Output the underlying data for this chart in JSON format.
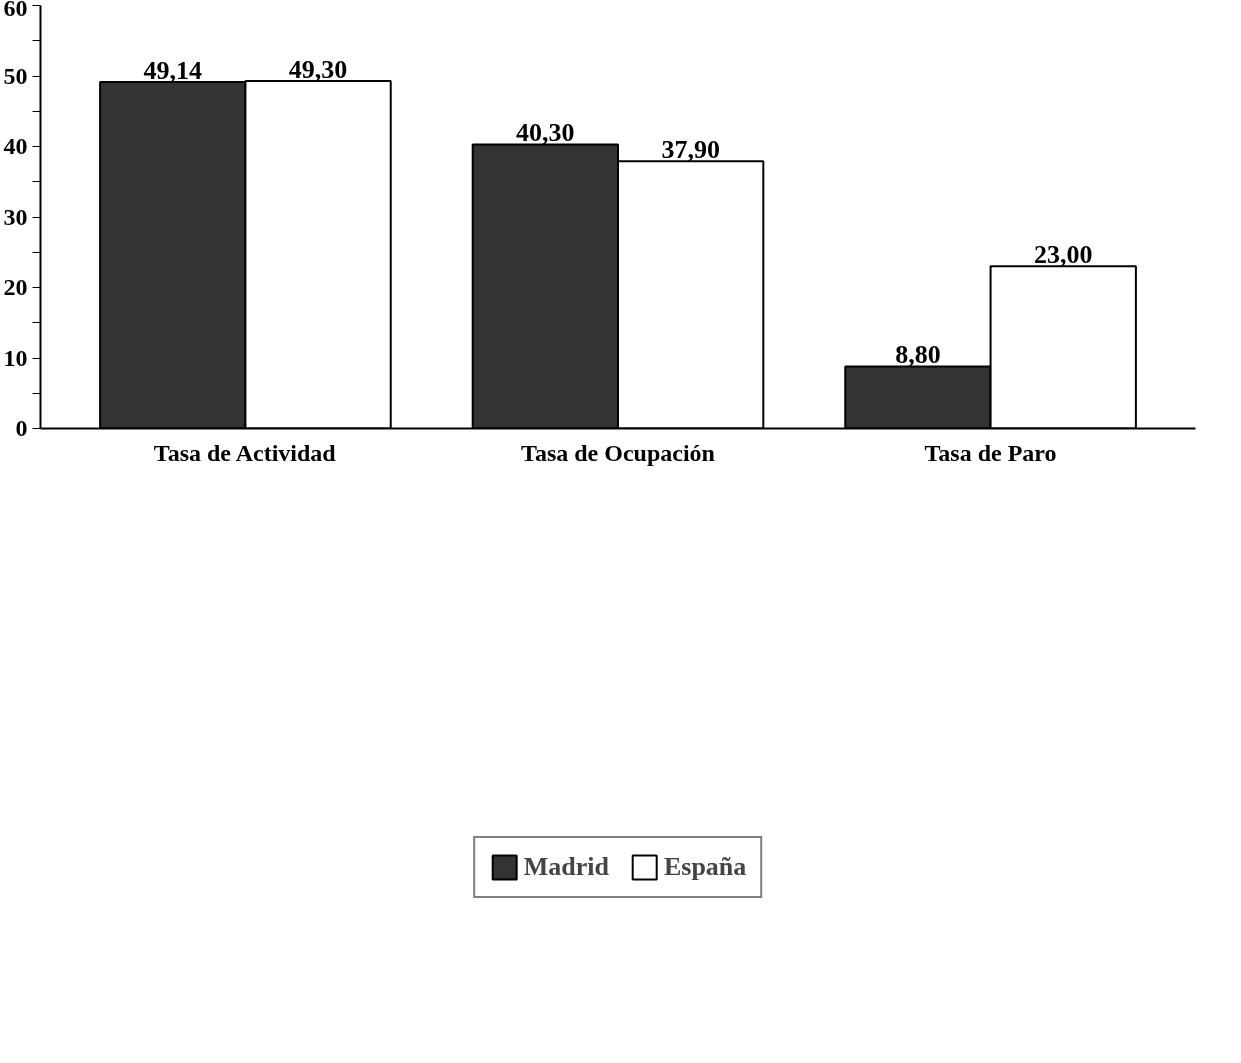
{
  "chart_data": {
    "type": "bar",
    "categories": [
      "Tasa de Actividad",
      "Tasa de Ocupación",
      "Tasa de Paro"
    ],
    "series": [
      {
        "name": "Madrid",
        "color": "#333333",
        "values": [
          49.14,
          40.3,
          8.8
        ],
        "value_labels": [
          "49,14",
          "40,30",
          "8,80"
        ]
      },
      {
        "name": "España",
        "color": "#ffffff",
        "values": [
          49.3,
          37.9,
          23.0
        ],
        "value_labels": [
          "49,30",
          "37,90",
          "23,00"
        ]
      }
    ],
    "ylim": [
      0,
      60
    ],
    "yticks": [
      0,
      {
        "value": 5,
        "label": null
      },
      10,
      {
        "value": 15,
        "label": null
      },
      20,
      {
        "value": 25,
        "label": null
      },
      30,
      {
        "value": 35,
        "label": null
      },
      40,
      {
        "value": 45,
        "label": null
      },
      50,
      {
        "value": 55,
        "label": null
      },
      60
    ],
    "grid": false,
    "legend": "bottom"
  }
}
